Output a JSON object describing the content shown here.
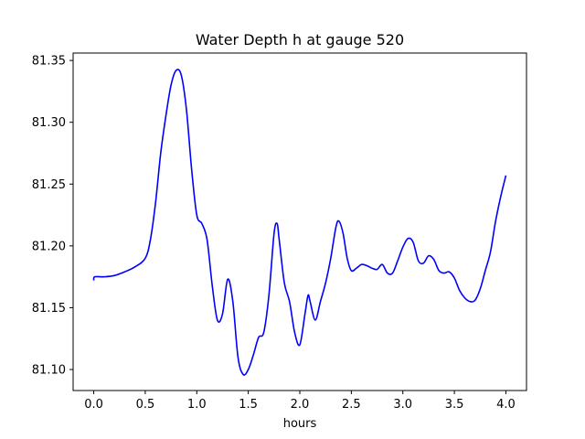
{
  "chart_data": {
    "type": "line",
    "title": "Water Depth h at gauge 520",
    "xlabel": "hours",
    "ylabel": "",
    "xlim": [
      -0.2,
      4.2
    ],
    "ylim": [
      81.083,
      81.356
    ],
    "xticks": [
      0.0,
      0.5,
      1.0,
      1.5,
      2.0,
      2.5,
      3.0,
      3.5,
      4.0
    ],
    "xtick_labels": [
      "0.0",
      "0.5",
      "1.0",
      "1.5",
      "2.0",
      "2.5",
      "3.0",
      "3.5",
      "4.0"
    ],
    "yticks": [
      81.1,
      81.15,
      81.2,
      81.25,
      81.3,
      81.35
    ],
    "ytick_labels": [
      "81.10",
      "81.15",
      "81.20",
      "81.25",
      "81.30",
      "81.35"
    ],
    "grid": false,
    "line_color": "#0000ff",
    "series": [
      {
        "x": [
          0.0,
          0.01,
          0.1,
          0.2,
          0.3,
          0.4,
          0.5,
          0.55,
          0.6,
          0.65,
          0.7,
          0.75,
          0.8,
          0.85,
          0.9,
          0.95,
          1.0,
          1.05,
          1.1,
          1.15,
          1.2,
          1.25,
          1.3,
          1.35,
          1.4,
          1.45,
          1.5,
          1.55,
          1.6,
          1.65,
          1.7,
          1.75,
          1.78,
          1.8,
          1.85,
          1.9,
          1.95,
          2.0,
          2.05,
          2.08,
          2.1,
          2.15,
          2.2,
          2.25,
          2.3,
          2.35,
          2.38,
          2.42,
          2.46,
          2.5,
          2.55,
          2.6,
          2.65,
          2.7,
          2.75,
          2.8,
          2.85,
          2.9,
          2.95,
          3.0,
          3.05,
          3.1,
          3.15,
          3.2,
          3.25,
          3.3,
          3.35,
          3.4,
          3.45,
          3.5,
          3.55,
          3.6,
          3.65,
          3.7,
          3.75,
          3.8,
          3.85,
          3.9,
          3.95,
          4.0
        ],
        "y": [
          81.172,
          81.175,
          81.175,
          81.176,
          81.179,
          81.183,
          81.19,
          81.205,
          81.235,
          81.275,
          81.305,
          81.33,
          81.342,
          81.338,
          81.31,
          81.262,
          81.225,
          81.218,
          81.205,
          81.168,
          81.14,
          81.145,
          81.173,
          81.155,
          81.11,
          81.096,
          81.1,
          81.112,
          81.126,
          81.13,
          81.16,
          81.21,
          81.218,
          81.205,
          81.17,
          81.155,
          81.13,
          81.12,
          81.145,
          81.16,
          81.155,
          81.14,
          81.155,
          81.17,
          81.19,
          81.215,
          81.22,
          81.21,
          81.19,
          81.18,
          81.182,
          81.185,
          81.184,
          81.182,
          81.181,
          81.185,
          81.178,
          81.178,
          81.188,
          81.199,
          81.206,
          81.203,
          81.188,
          81.186,
          81.192,
          81.189,
          81.18,
          81.178,
          81.179,
          81.174,
          81.164,
          81.158,
          81.155,
          81.156,
          81.165,
          81.18,
          81.195,
          81.22,
          81.24,
          81.257
        ]
      }
    ]
  }
}
